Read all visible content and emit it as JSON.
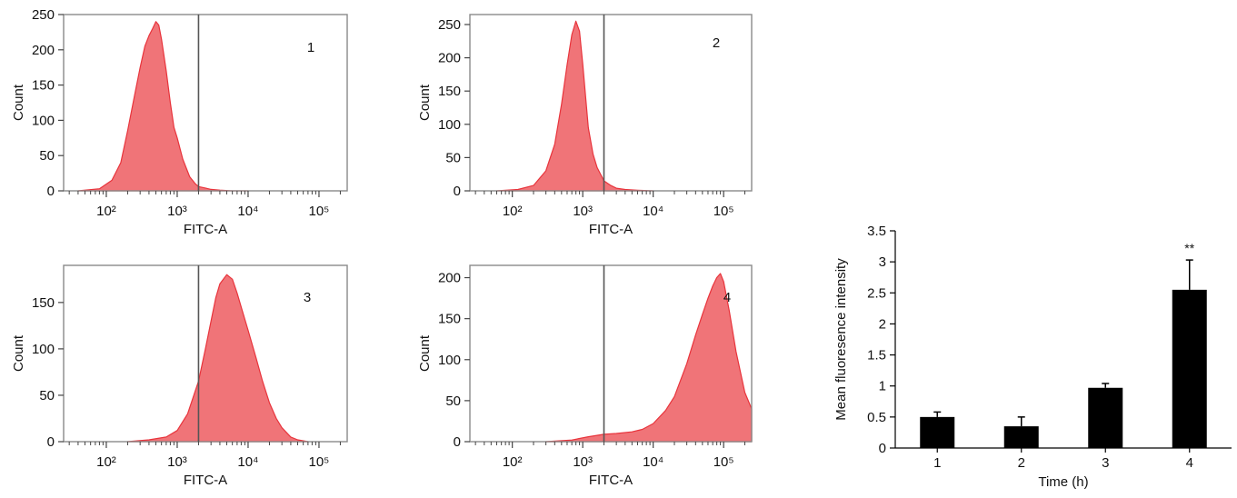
{
  "colors": {
    "fill": "#f07478",
    "stroke": "#e8343c",
    "frame": "#8a8a8a",
    "gate": "#555555",
    "bar": "#000000"
  },
  "chart_data": [
    {
      "type": "area",
      "panel_label": "1",
      "xlabel": "FITC-A",
      "ylabel": "Count",
      "x_scale": "log",
      "xlim": [
        25,
        250000
      ],
      "ylim": [
        0,
        250
      ],
      "x_ticks": [
        {
          "value": 100,
          "label": "10²"
        },
        {
          "value": 1000,
          "label": "10³"
        },
        {
          "value": 10000,
          "label": "10⁴"
        },
        {
          "value": 100000,
          "label": "10⁵"
        }
      ],
      "y_ticks": [
        0,
        50,
        100,
        150,
        200,
        250
      ],
      "gate_x": 2000,
      "x": [
        40,
        80,
        120,
        160,
        200,
        250,
        300,
        350,
        400,
        450,
        500,
        550,
        600,
        700,
        800,
        900,
        1000,
        1200,
        1500,
        1800,
        2000,
        2500,
        3000,
        4000,
        6000,
        10000
      ],
      "y": [
        0,
        3,
        15,
        40,
        85,
        135,
        175,
        205,
        220,
        230,
        240,
        235,
        215,
        170,
        125,
        90,
        75,
        45,
        20,
        10,
        6,
        4,
        2,
        1,
        0,
        0
      ]
    },
    {
      "type": "area",
      "panel_label": "2",
      "xlabel": "FITC-A",
      "ylabel": "Count",
      "x_scale": "log",
      "xlim": [
        25,
        250000
      ],
      "ylim": [
        0,
        265
      ],
      "x_ticks": [
        {
          "value": 100,
          "label": "10²"
        },
        {
          "value": 1000,
          "label": "10³"
        },
        {
          "value": 10000,
          "label": "10⁴"
        },
        {
          "value": 100000,
          "label": "10⁵"
        }
      ],
      "y_ticks": [
        0,
        50,
        100,
        150,
        200,
        250
      ],
      "gate_x": 2000,
      "x": [
        60,
        120,
        200,
        300,
        400,
        500,
        600,
        700,
        800,
        900,
        1000,
        1100,
        1200,
        1400,
        1600,
        2000,
        2500,
        3000,
        4000,
        6000,
        10000
      ],
      "y": [
        0,
        2,
        8,
        30,
        70,
        130,
        190,
        235,
        255,
        240,
        190,
        140,
        95,
        55,
        35,
        15,
        8,
        4,
        2,
        1,
        0
      ]
    },
    {
      "type": "area",
      "panel_label": "3",
      "xlabel": "FITC-A",
      "ylabel": "Count",
      "x_scale": "log",
      "xlim": [
        25,
        250000
      ],
      "ylim": [
        0,
        190
      ],
      "x_ticks": [
        {
          "value": 100,
          "label": "10²"
        },
        {
          "value": 1000,
          "label": "10³"
        },
        {
          "value": 10000,
          "label": "10⁴"
        },
        {
          "value": 100000,
          "label": "10⁵"
        }
      ],
      "y_ticks": [
        0,
        50,
        100,
        150
      ],
      "gate_x": 2000,
      "x": [
        200,
        400,
        700,
        1000,
        1400,
        2000,
        2500,
        3000,
        3500,
        4000,
        5000,
        6000,
        7000,
        8000,
        10000,
        13000,
        16000,
        20000,
        25000,
        30000,
        40000,
        50000,
        70000
      ],
      "y": [
        0,
        2,
        5,
        12,
        30,
        65,
        100,
        130,
        155,
        170,
        180,
        175,
        160,
        145,
        120,
        90,
        65,
        42,
        25,
        15,
        5,
        2,
        0
      ]
    },
    {
      "type": "area",
      "panel_label": "4",
      "xlabel": "FITC-A",
      "ylabel": "Count",
      "x_scale": "log",
      "xlim": [
        25,
        250000
      ],
      "ylim": [
        0,
        215
      ],
      "x_ticks": [
        {
          "value": 100,
          "label": "10²"
        },
        {
          "value": 1000,
          "label": "10³"
        },
        {
          "value": 10000,
          "label": "10⁴"
        },
        {
          "value": 100000,
          "label": "10⁵"
        }
      ],
      "y_ticks": [
        0,
        50,
        100,
        150,
        200
      ],
      "gate_x": 2000,
      "x": [
        300,
        700,
        1200,
        2000,
        3000,
        5000,
        7000,
        10000,
        15000,
        20000,
        30000,
        40000,
        50000,
        60000,
        70000,
        80000,
        90000,
        100000,
        120000,
        150000,
        200000,
        250000
      ],
      "y": [
        0,
        2,
        6,
        9,
        10,
        12,
        15,
        22,
        38,
        55,
        95,
        130,
        155,
        175,
        190,
        200,
        205,
        195,
        160,
        110,
        60,
        40
      ]
    },
    {
      "type": "bar",
      "xlabel": "Time (h)",
      "ylabel": "Mean fluoresence intensity",
      "categories": [
        "1",
        "2",
        "3",
        "4"
      ],
      "values": [
        0.5,
        0.35,
        0.97,
        2.55
      ],
      "errors": [
        0.08,
        0.15,
        0.07,
        0.48
      ],
      "annotations": [
        "",
        "",
        "",
        "**"
      ],
      "ylim": [
        0,
        3.5
      ],
      "y_ticks": [
        0,
        0.5,
        1,
        1.5,
        2,
        2.5,
        3,
        3.5
      ]
    }
  ]
}
